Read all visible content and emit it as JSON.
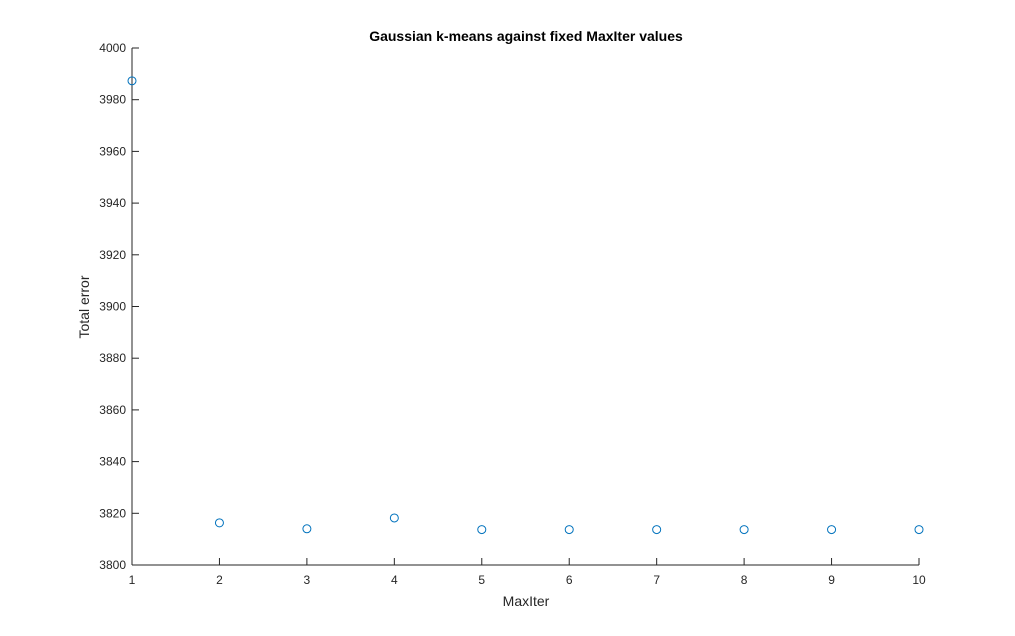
{
  "chart_data": {
    "type": "scatter",
    "title": "Gaussian k-means against fixed MaxIter values",
    "xlabel": "MaxIter",
    "ylabel": "Total error",
    "xlim": [
      1,
      10
    ],
    "ylim": [
      3800,
      4000
    ],
    "xticks": [
      1,
      2,
      3,
      4,
      5,
      6,
      7,
      8,
      9,
      10
    ],
    "yticks": [
      3800,
      3820,
      3840,
      3860,
      3880,
      3900,
      3920,
      3940,
      3960,
      3980,
      4000
    ],
    "grid": false,
    "marker": "circle-open",
    "marker_color": "#0072BD",
    "axis_color": "#262626",
    "series": [
      {
        "x": [
          1,
          2,
          3,
          4,
          5,
          6,
          7,
          8,
          9,
          10
        ],
        "y": [
          3987.3,
          3816.3,
          3814.0,
          3818.2,
          3813.7,
          3813.7,
          3813.7,
          3813.7,
          3813.7,
          3813.7
        ]
      }
    ]
  }
}
